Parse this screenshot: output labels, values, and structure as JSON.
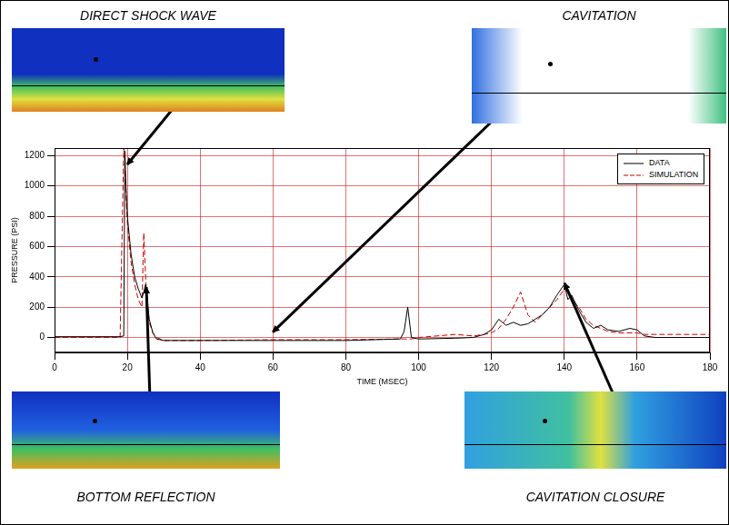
{
  "chart_data": {
    "type": "line",
    "x_label": "TIME (MSEC)",
    "y_label": "PRESSURE (PSI)",
    "annotations": [
      "DIRECT SHOCK WAVE",
      "CAVITATION",
      "BOTTOM REFLECTION",
      "CAVITATION CLOSURE"
    ],
    "x": [
      0,
      10,
      18,
      19,
      19.3,
      19.6,
      20,
      21,
      22,
      23,
      24,
      24.5,
      25,
      25.5,
      26,
      27,
      28,
      30,
      40,
      60,
      80,
      95,
      96,
      97,
      98,
      100,
      110,
      115,
      118,
      120,
      122,
      124,
      126,
      128,
      130,
      132,
      134,
      136,
      138,
      140,
      141,
      142,
      144,
      146,
      148,
      150,
      152,
      155,
      158,
      160,
      162,
      165,
      170,
      180
    ],
    "series": [
      {
        "name": "DATA",
        "color": "#000000",
        "line_style": "solid",
        "values": [
          5,
          5,
          5,
          10,
          1230,
          1000,
          800,
          550,
          400,
          320,
          260,
          300,
          350,
          250,
          120,
          30,
          -10,
          -20,
          -20,
          -20,
          -20,
          -10,
          40,
          200,
          0,
          -10,
          -5,
          0,
          20,
          50,
          120,
          80,
          100,
          80,
          90,
          120,
          150,
          200,
          280,
          350,
          250,
          280,
          180,
          100,
          60,
          80,
          50,
          40,
          60,
          50,
          10,
          0,
          0,
          0
        ]
      },
      {
        "name": "SIMULATION",
        "color": "#cc0000",
        "line_style": "dashed",
        "values": [
          0,
          0,
          0,
          1250,
          1150,
          950,
          750,
          500,
          350,
          250,
          200,
          690,
          400,
          200,
          100,
          30,
          0,
          -20,
          -20,
          -15,
          -15,
          -10,
          -10,
          -10,
          -10,
          0,
          20,
          10,
          20,
          30,
          60,
          120,
          200,
          300,
          150,
          100,
          150,
          200,
          250,
          320,
          300,
          250,
          200,
          120,
          80,
          60,
          40,
          30,
          30,
          30,
          20,
          20,
          20,
          20
        ]
      }
    ],
    "xlim": [
      0,
      180
    ],
    "xticks": [
      0,
      20,
      40,
      60,
      80,
      100,
      120,
      140,
      160,
      180
    ],
    "ylim": [
      -100,
      1250
    ],
    "yticks": [
      0,
      200,
      400,
      600,
      800,
      1000,
      1200
    ],
    "grid": true,
    "legend": "top-right"
  }
}
